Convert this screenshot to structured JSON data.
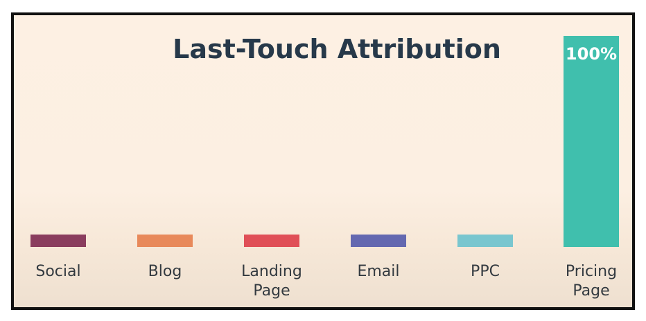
{
  "chart_data": {
    "type": "bar",
    "title": "Last-Touch Attribution",
    "categories": [
      [
        "Social"
      ],
      [
        "Blog"
      ],
      [
        "Landing",
        "Page"
      ],
      [
        "Email"
      ],
      [
        "PPC"
      ],
      [
        "Pricing",
        "Page"
      ]
    ],
    "values": [
      0,
      0,
      0,
      0,
      0,
      100
    ],
    "data_labels": [
      "",
      "",
      "",
      "",
      "",
      "100%"
    ],
    "colors": [
      "#8a3d5e",
      "#e8895a",
      "#e04f57",
      "#6468b0",
      "#79c6cf",
      "#40bfad"
    ],
    "xlabel": "",
    "ylabel": "",
    "ylim": [
      0,
      100
    ],
    "grid": false,
    "legend": "none"
  }
}
